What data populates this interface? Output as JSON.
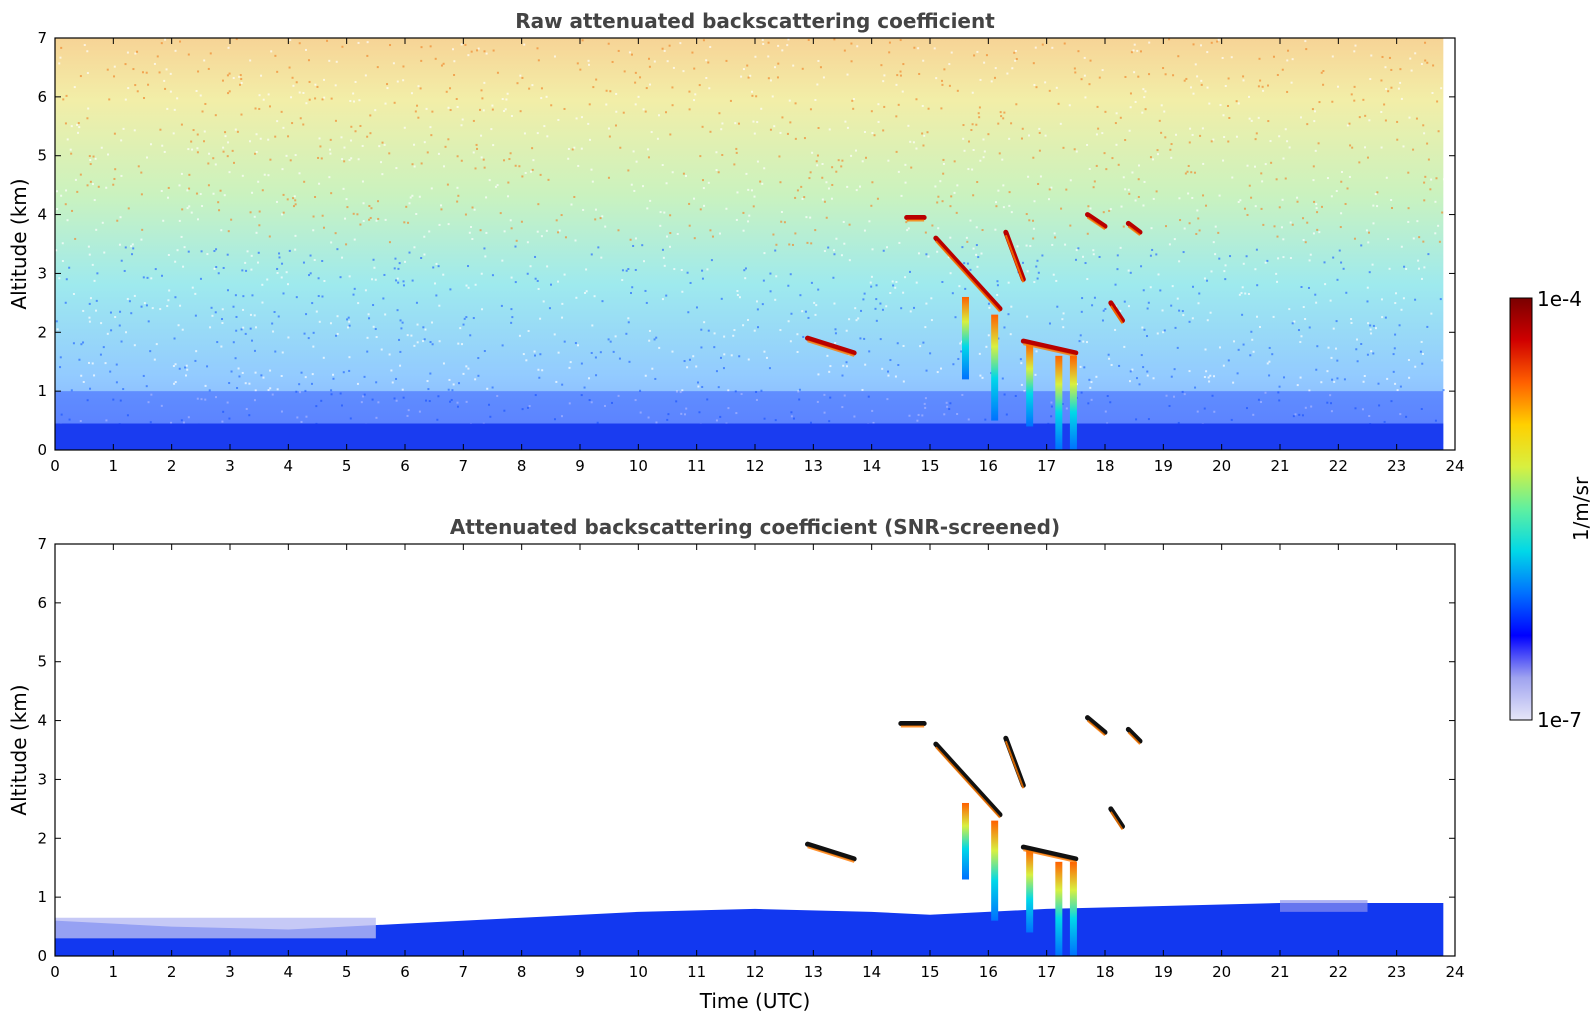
{
  "chart_data": [
    {
      "type": "heatmap",
      "title": "Raw attenuated backscattering coefficient",
      "xlabel": "",
      "ylabel": "Altitude (km)",
      "xlim": [
        0,
        24
      ],
      "ylim": [
        0,
        7
      ],
      "xticks": [
        "0",
        "1",
        "2",
        "3",
        "4",
        "5",
        "6",
        "7",
        "8",
        "9",
        "10",
        "11",
        "12",
        "13",
        "14",
        "15",
        "16",
        "17",
        "18",
        "19",
        "20",
        "21",
        "22",
        "23",
        "24"
      ],
      "yticks": [
        "0",
        "1",
        "2",
        "3",
        "4",
        "5",
        "6",
        "7"
      ],
      "data_time_range": [
        0,
        23.8
      ],
      "features": [
        {
          "name": "boundary-layer",
          "t_start": 0,
          "t_end": 23.8,
          "top_km": 0.45
        },
        {
          "name": "cloud",
          "t_start": 12.9,
          "t_end": 13.7,
          "alt_km": [
            1.9,
            1.65
          ]
        },
        {
          "name": "cloud",
          "t_start": 14.6,
          "t_end": 14.9,
          "alt_km": [
            3.95,
            3.95
          ]
        },
        {
          "name": "cloud",
          "t_start": 15.1,
          "t_end": 16.2,
          "alt_km": [
            3.6,
            2.4
          ]
        },
        {
          "name": "cloud",
          "t_start": 16.3,
          "t_end": 16.6,
          "alt_km": [
            3.7,
            2.9
          ]
        },
        {
          "name": "cloud",
          "t_start": 16.6,
          "t_end": 17.5,
          "alt_km": [
            1.85,
            1.65
          ]
        },
        {
          "name": "cloud",
          "t_start": 17.7,
          "t_end": 18.0,
          "alt_km": [
            4.0,
            3.8
          ]
        },
        {
          "name": "cloud",
          "t_start": 18.4,
          "t_end": 18.6,
          "alt_km": [
            3.85,
            3.7
          ]
        },
        {
          "name": "cloud",
          "t_start": 18.1,
          "t_end": 18.3,
          "alt_km": [
            2.5,
            2.2
          ]
        }
      ],
      "fallstreaks": [
        {
          "t": 15.6,
          "top_km": 2.6,
          "bottom_km": 1.2
        },
        {
          "t": 16.1,
          "top_km": 2.3,
          "bottom_km": 0.5
        },
        {
          "t": 16.7,
          "top_km": 1.8,
          "bottom_km": 0.4
        },
        {
          "t": 17.2,
          "top_km": 1.6,
          "bottom_km": 0.0
        },
        {
          "t": 17.45,
          "top_km": 1.6,
          "bottom_km": 0.0
        }
      ]
    },
    {
      "type": "heatmap",
      "title": "Attenuated backscattering coefficient (SNR-screened)",
      "xlabel": "Time (UTC)",
      "ylabel": "Altitude (km)",
      "xlim": [
        0,
        24
      ],
      "ylim": [
        0,
        7
      ],
      "xticks": [
        "0",
        "1",
        "2",
        "3",
        "4",
        "5",
        "6",
        "7",
        "8",
        "9",
        "10",
        "11",
        "12",
        "13",
        "14",
        "15",
        "16",
        "17",
        "18",
        "19",
        "20",
        "21",
        "22",
        "23",
        "24"
      ],
      "yticks": [
        "0",
        "1",
        "2",
        "3",
        "4",
        "5",
        "6",
        "7"
      ],
      "data_time_range": [
        0,
        23.8
      ],
      "boundary_layer_top_km": [
        {
          "t": 0,
          "top": 0.6
        },
        {
          "t": 2,
          "top": 0.5
        },
        {
          "t": 4,
          "top": 0.45
        },
        {
          "t": 6,
          "top": 0.55
        },
        {
          "t": 8,
          "top": 0.65
        },
        {
          "t": 10,
          "top": 0.75
        },
        {
          "t": 12,
          "top": 0.8
        },
        {
          "t": 14,
          "top": 0.75
        },
        {
          "t": 15,
          "top": 0.7
        },
        {
          "t": 17,
          "top": 0.8
        },
        {
          "t": 19,
          "top": 0.85
        },
        {
          "t": 21,
          "top": 0.9
        },
        {
          "t": 22,
          "top": 0.9
        },
        {
          "t": 23.8,
          "top": 0.9
        }
      ],
      "features": [
        {
          "name": "cloud",
          "t_start": 12.9,
          "t_end": 13.7,
          "alt_km": [
            1.9,
            1.65
          ]
        },
        {
          "name": "cloud",
          "t_start": 14.5,
          "t_end": 14.9,
          "alt_km": [
            3.95,
            3.95
          ]
        },
        {
          "name": "cloud",
          "t_start": 15.1,
          "t_end": 16.2,
          "alt_km": [
            3.6,
            2.4
          ]
        },
        {
          "name": "cloud",
          "t_start": 16.3,
          "t_end": 16.6,
          "alt_km": [
            3.7,
            2.9
          ]
        },
        {
          "name": "cloud",
          "t_start": 16.6,
          "t_end": 17.5,
          "alt_km": [
            1.85,
            1.65
          ]
        },
        {
          "name": "cloud",
          "t_start": 17.7,
          "t_end": 18.0,
          "alt_km": [
            4.05,
            3.8
          ]
        },
        {
          "name": "cloud",
          "t_start": 18.4,
          "t_end": 18.6,
          "alt_km": [
            3.85,
            3.65
          ]
        },
        {
          "name": "cloud",
          "t_start": 18.1,
          "t_end": 18.3,
          "alt_km": [
            2.5,
            2.2
          ]
        }
      ],
      "fallstreaks": [
        {
          "t": 15.6,
          "top_km": 2.6,
          "bottom_km": 1.3
        },
        {
          "t": 16.1,
          "top_km": 2.3,
          "bottom_km": 0.6
        },
        {
          "t": 16.7,
          "top_km": 1.8,
          "bottom_km": 0.4
        },
        {
          "t": 17.2,
          "top_km": 1.6,
          "bottom_km": 0.0
        },
        {
          "t": 17.45,
          "top_km": 1.6,
          "bottom_km": 0.0
        }
      ]
    }
  ],
  "colorbar": {
    "label": "1/m/sr",
    "min_label": "1e-7",
    "max_label": "1e-4",
    "scale": "log",
    "colors": [
      "#e6e6f8",
      "#9fa3f0",
      "#0000ff",
      "#0070ff",
      "#00d8e8",
      "#5ff0a0",
      "#d8f040",
      "#ffd000",
      "#ff6000",
      "#d00000",
      "#7a0000"
    ]
  }
}
